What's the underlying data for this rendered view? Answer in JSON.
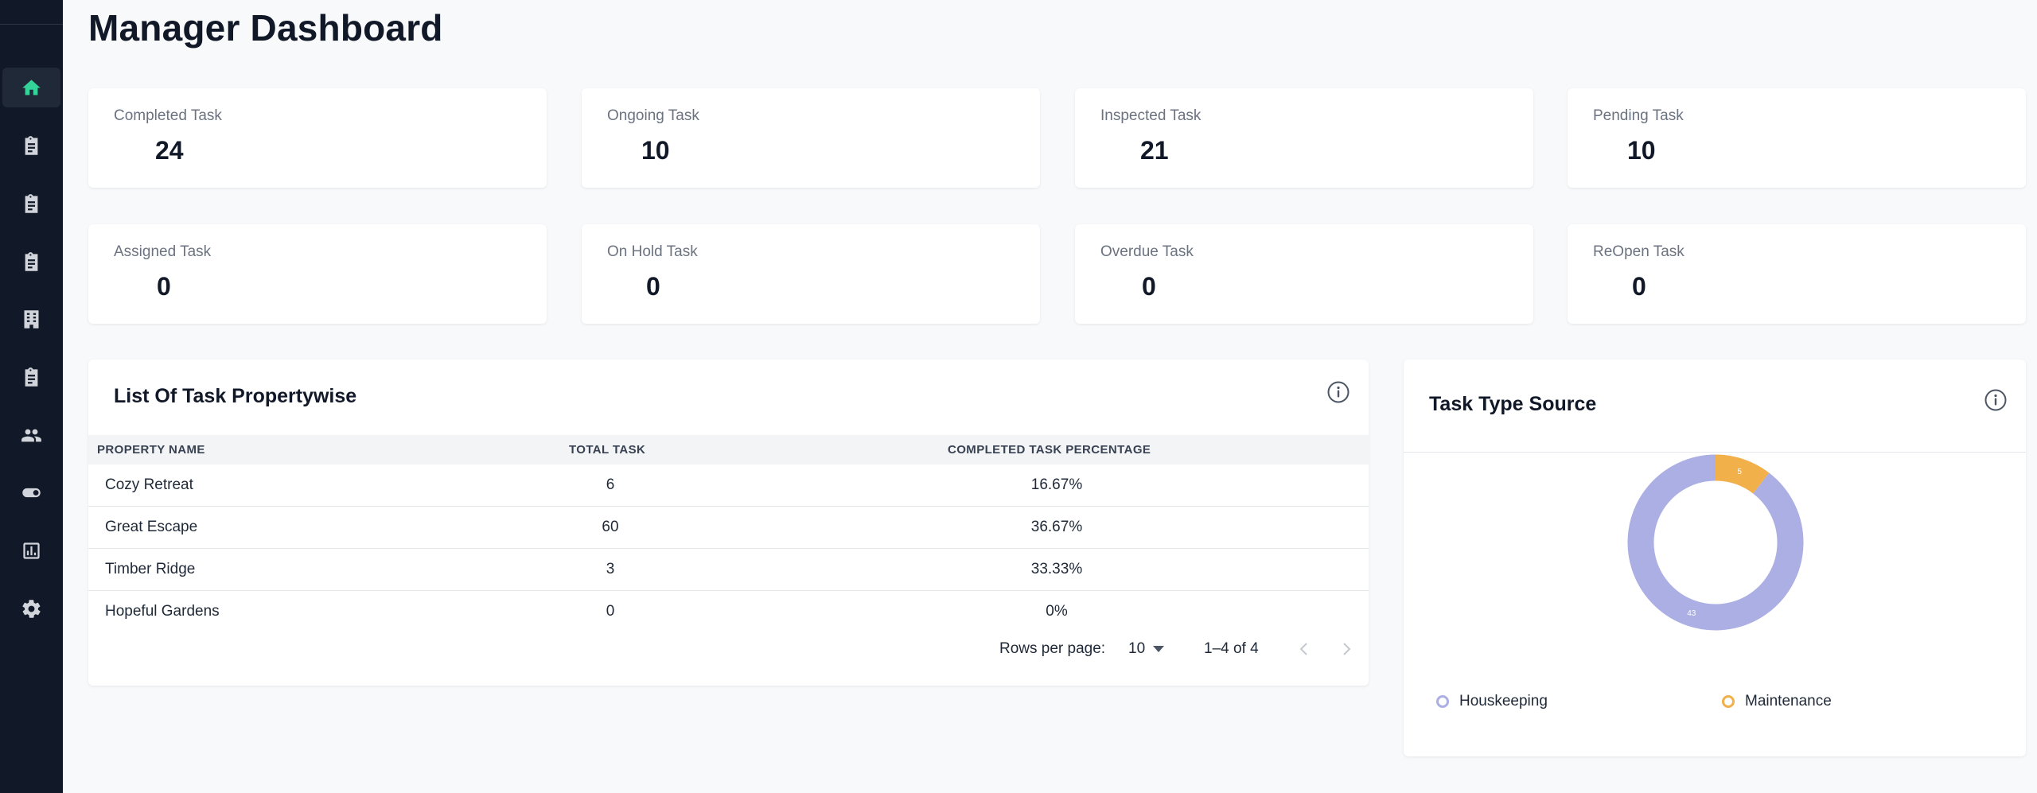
{
  "page": {
    "title": "Manager Dashboard"
  },
  "sidebar": {
    "items": [
      {
        "icon": "home-icon",
        "active": true
      },
      {
        "icon": "clipboard-icon"
      },
      {
        "icon": "clipboard-icon"
      },
      {
        "icon": "clipboard-icon"
      },
      {
        "icon": "building-icon"
      },
      {
        "icon": "clipboard-icon"
      },
      {
        "icon": "users-icon"
      },
      {
        "icon": "toggle-icon"
      },
      {
        "icon": "bar-chart-icon"
      },
      {
        "icon": "gear-icon"
      }
    ]
  },
  "stats": [
    {
      "label": "Completed Task",
      "value": "24"
    },
    {
      "label": "Ongoing Task",
      "value": "10"
    },
    {
      "label": "Inspected Task",
      "value": "21"
    },
    {
      "label": "Pending Task",
      "value": "10"
    },
    {
      "label": "Assigned Task",
      "value": "0"
    },
    {
      "label": "On Hold Task",
      "value": "0"
    },
    {
      "label": "Overdue Task",
      "value": "0"
    },
    {
      "label": "ReOpen Task",
      "value": "0"
    }
  ],
  "task_table": {
    "title": "List Of Task Propertywise",
    "columns": [
      "PROPERTY NAME",
      "TOTAL TASK",
      "COMPLETED TASK PERCENTAGE"
    ],
    "rows": [
      [
        "Cozy Retreat",
        "6",
        "16.67%"
      ],
      [
        "Great Escape",
        "60",
        "36.67%"
      ],
      [
        "Timber Ridge",
        "3",
        "33.33%"
      ],
      [
        "Hopeful Gardens",
        "0",
        "0%"
      ]
    ],
    "pagination": {
      "rows_per_page_label": "Rows per page:",
      "rows_per_page": "10",
      "range": "1–4 of 4"
    }
  },
  "task_type": {
    "title": "Task Type Source",
    "series": [
      {
        "name": "Houskeeping",
        "value": 43,
        "color": "#abafe3"
      },
      {
        "name": "Maintenance",
        "value": 5,
        "color": "#f2b04b"
      }
    ]
  },
  "colors": {
    "sidebar_bg": "#111827",
    "active_icon": "#34d399",
    "icon": "#d1d5db"
  }
}
